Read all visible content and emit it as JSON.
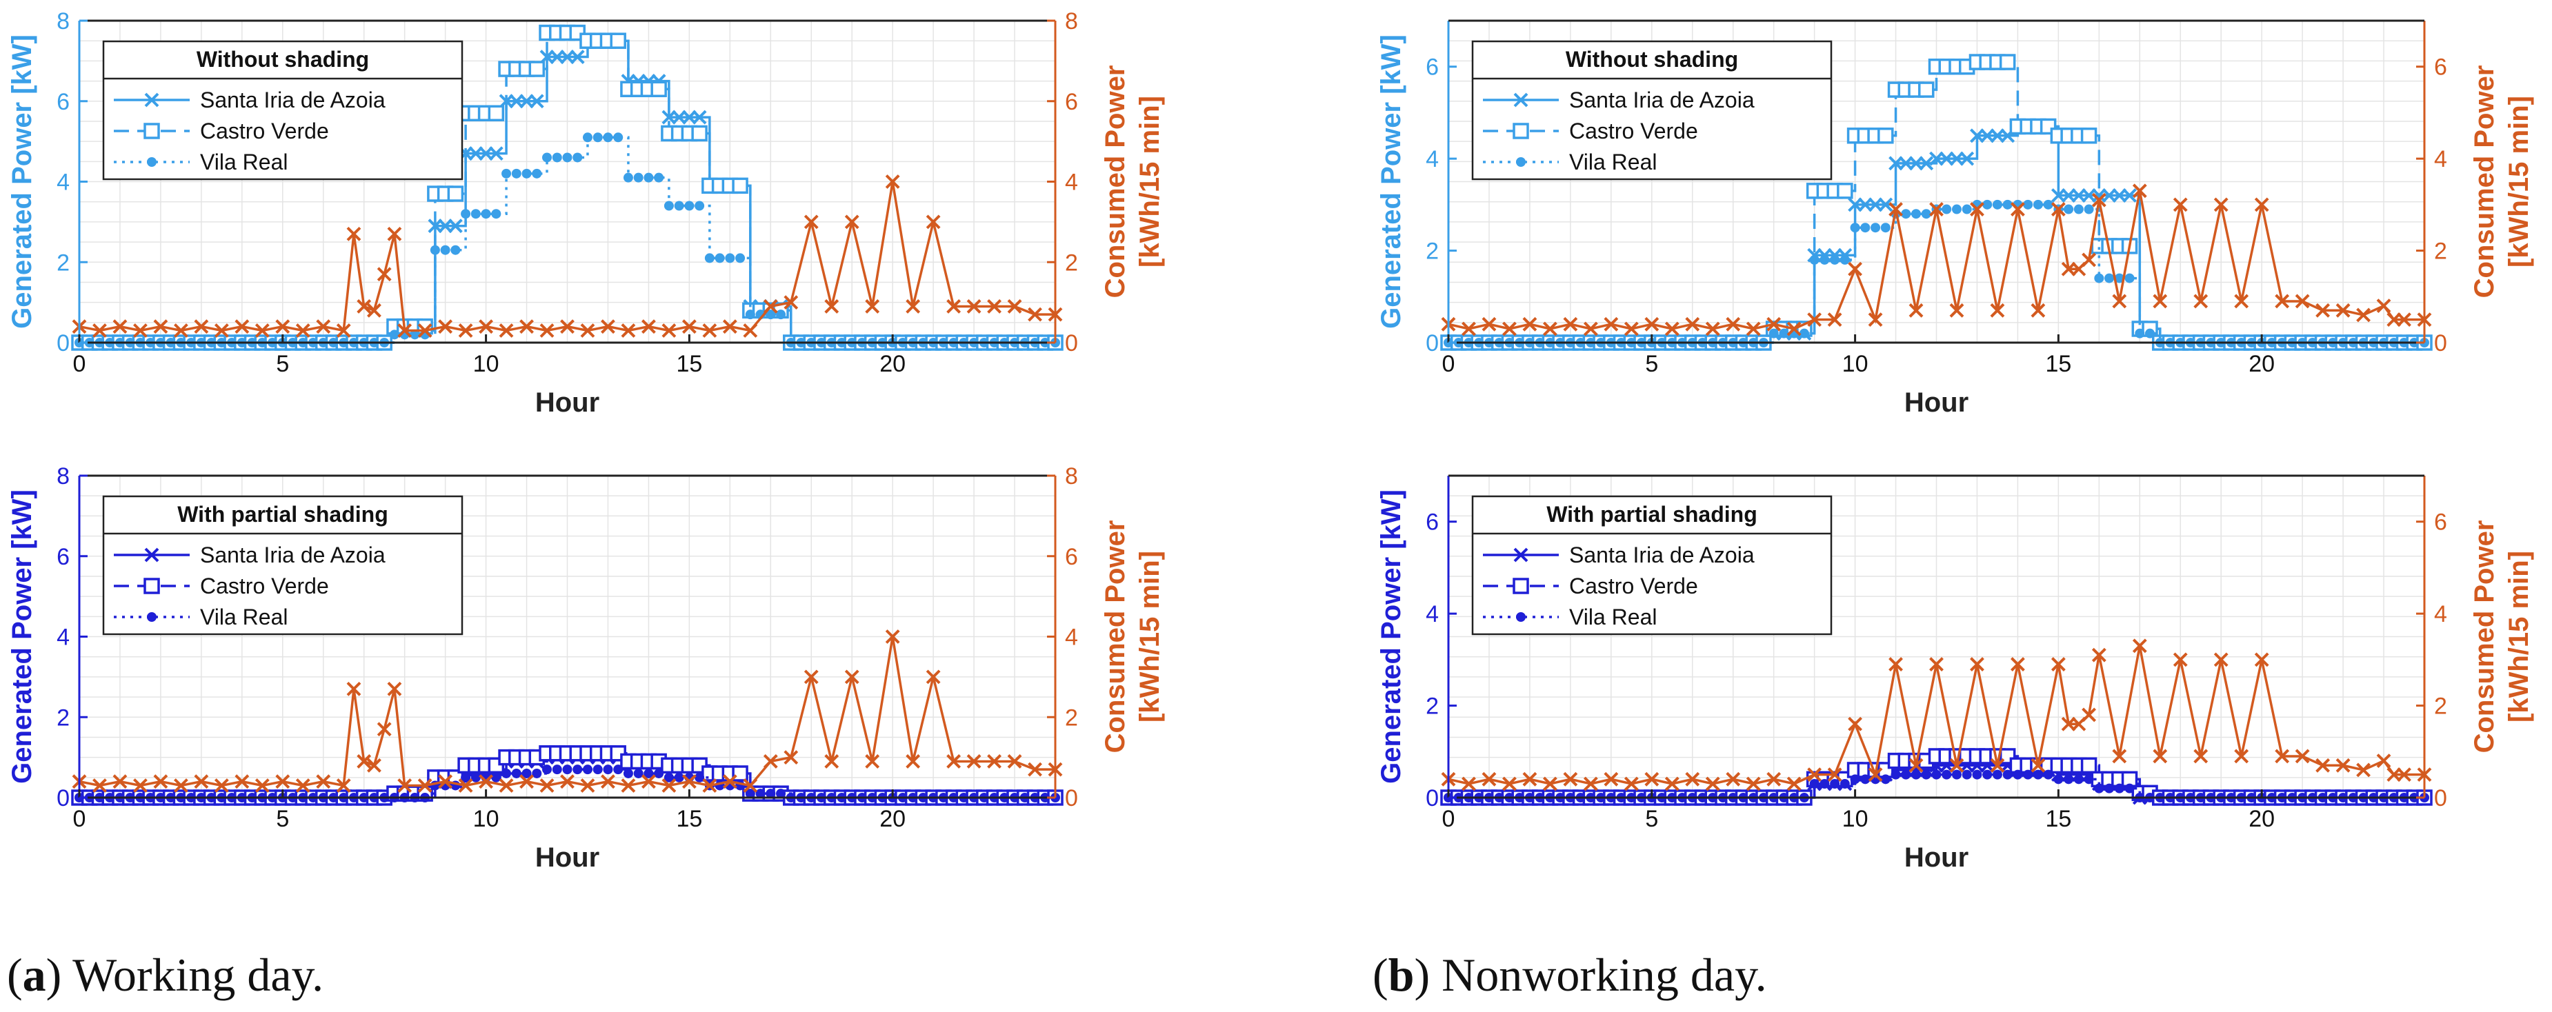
{
  "colors": {
    "unshaded": "#3a9fe8",
    "shaded": "#1f1fd6",
    "consumed": "#d35a1f",
    "grid": "#e4e4e4",
    "axis": "#222222"
  },
  "captions": [
    {
      "letter": "a",
      "text": " Working day."
    },
    {
      "letter": "b",
      "text": " Nonworking day."
    }
  ],
  "chart_data": [
    {
      "id": "working-unshaded",
      "type": "line",
      "title": "Without shading",
      "xlabel": "Hour",
      "ylabel_left": "Generated Power [kW]",
      "ylabel_right_1": "Consumed Power",
      "ylabel_right_2": "[kWh/15 min]",
      "xlim": [
        0,
        24
      ],
      "ylim_left": [
        0,
        8
      ],
      "ylim_right": [
        0,
        8
      ],
      "xticks": [
        0,
        5,
        10,
        15,
        20
      ],
      "yticks_left": [
        0,
        2,
        4,
        6,
        8
      ],
      "yticks_right": [
        0,
        2,
        4,
        6,
        8
      ],
      "color_key": "unshaded",
      "generation_hours": [
        7.75,
        8.75,
        9.0,
        9.5,
        10.0,
        10.5,
        11.0,
        11.5,
        12.0,
        12.5,
        13.0,
        13.5,
        14.0,
        14.5,
        15.0,
        15.5,
        16.0,
        16.5,
        17.0,
        17.5
      ],
      "series": [
        {
          "name": "Santa Iria de Azoia",
          "marker": "x",
          "dash": "solid",
          "values": [
            0.3,
            2.9,
            2.9,
            4.7,
            4.7,
            6.0,
            6.0,
            7.1,
            7.1,
            7.5,
            7.5,
            6.5,
            6.5,
            5.6,
            5.6,
            3.9,
            3.9,
            0.9,
            0.9,
            0.0
          ]
        },
        {
          "name": "Castro Verde",
          "marker": "square",
          "dash": "dash",
          "values": [
            0.4,
            3.7,
            3.7,
            5.7,
            5.7,
            6.8,
            6.8,
            7.7,
            7.7,
            7.5,
            7.5,
            6.3,
            6.3,
            5.2,
            5.2,
            3.9,
            3.9,
            0.8,
            0.8,
            0.0
          ]
        },
        {
          "name": "Vila Real",
          "marker": "dot",
          "dash": "dot",
          "values": [
            0.2,
            2.3,
            2.3,
            3.2,
            3.2,
            4.2,
            4.2,
            4.6,
            4.6,
            5.1,
            5.1,
            4.1,
            4.1,
            3.4,
            3.4,
            2.1,
            2.1,
            0.7,
            0.7,
            0.0
          ]
        }
      ],
      "consumption": {
        "name": "Consumed Power",
        "x": [
          0,
          0.5,
          1,
          1.5,
          2,
          2.5,
          3,
          3.5,
          4,
          4.5,
          5,
          5.5,
          6,
          6.5,
          6.75,
          7,
          7.25,
          7.5,
          7.75,
          8,
          8.5,
          9,
          9.5,
          10,
          10.5,
          11,
          11.5,
          12,
          12.5,
          13,
          13.5,
          14,
          14.5,
          15,
          15.5,
          16,
          16.5,
          17,
          17.5,
          18,
          18.5,
          19,
          19.5,
          20,
          20.5,
          21,
          21.5,
          22,
          22.5,
          23,
          23.5,
          24
        ],
        "values": [
          0.4,
          0.3,
          0.4,
          0.3,
          0.4,
          0.3,
          0.4,
          0.3,
          0.4,
          0.3,
          0.4,
          0.3,
          0.4,
          0.3,
          2.7,
          0.9,
          0.8,
          1.7,
          2.7,
          0.3,
          0.3,
          0.4,
          0.3,
          0.4,
          0.3,
          0.4,
          0.3,
          0.4,
          0.3,
          0.4,
          0.3,
          0.4,
          0.3,
          0.4,
          0.3,
          0.4,
          0.3,
          0.9,
          1.0,
          3.0,
          0.9,
          3.0,
          0.9,
          4.0,
          0.9,
          3.0,
          0.9,
          0.9,
          0.9,
          0.9,
          0.7,
          0.7
        ]
      }
    },
    {
      "id": "working-shaded",
      "type": "line",
      "title": "With partial shading",
      "xlabel": "Hour",
      "ylabel_left": "Generated Power [kW]",
      "ylabel_right_1": "Consumed Power",
      "ylabel_right_2": "[kWh/15 min]",
      "xlim": [
        0,
        24
      ],
      "ylim_left": [
        0,
        8
      ],
      "ylim_right": [
        0,
        8
      ],
      "xticks": [
        0,
        5,
        10,
        15,
        20
      ],
      "yticks_left": [
        0,
        2,
        4,
        6,
        8
      ],
      "yticks_right": [
        0,
        2,
        4,
        6,
        8
      ],
      "color_key": "shaded",
      "generation_hours": [
        7.75,
        8.75,
        9.0,
        9.5,
        10.0,
        10.5,
        11.0,
        11.5,
        12.0,
        12.5,
        13.0,
        13.5,
        14.0,
        14.5,
        15.0,
        15.5,
        16.0,
        16.5,
        17.0,
        17.5
      ],
      "series": [
        {
          "name": "Santa Iria de Azoia",
          "marker": "x",
          "dash": "solid",
          "values": [
            0.1,
            0.4,
            0.4,
            0.7,
            0.7,
            0.9,
            0.9,
            1.0,
            1.0,
            1.0,
            1.0,
            0.9,
            0.9,
            0.8,
            0.8,
            0.6,
            0.6,
            0.1,
            0.1,
            0.0
          ]
        },
        {
          "name": "Castro Verde",
          "marker": "square",
          "dash": "dash",
          "values": [
            0.1,
            0.5,
            0.5,
            0.8,
            0.8,
            1.0,
            1.0,
            1.1,
            1.1,
            1.1,
            1.1,
            0.9,
            0.9,
            0.8,
            0.8,
            0.6,
            0.6,
            0.1,
            0.1,
            0.0
          ]
        },
        {
          "name": "Vila Real",
          "marker": "dot",
          "dash": "dot",
          "values": [
            0.0,
            0.3,
            0.3,
            0.5,
            0.5,
            0.6,
            0.6,
            0.7,
            0.7,
            0.7,
            0.7,
            0.6,
            0.6,
            0.5,
            0.5,
            0.3,
            0.3,
            0.1,
            0.1,
            0.0
          ]
        }
      ],
      "consumption": {
        "name": "Consumed Power",
        "x": [
          0,
          0.5,
          1,
          1.5,
          2,
          2.5,
          3,
          3.5,
          4,
          4.5,
          5,
          5.5,
          6,
          6.5,
          6.75,
          7,
          7.25,
          7.5,
          7.75,
          8,
          8.5,
          9,
          9.5,
          10,
          10.5,
          11,
          11.5,
          12,
          12.5,
          13,
          13.5,
          14,
          14.5,
          15,
          15.5,
          16,
          16.5,
          17,
          17.5,
          18,
          18.5,
          19,
          19.5,
          20,
          20.5,
          21,
          21.5,
          22,
          22.5,
          23,
          23.5,
          24
        ],
        "values": [
          0.4,
          0.3,
          0.4,
          0.3,
          0.4,
          0.3,
          0.4,
          0.3,
          0.4,
          0.3,
          0.4,
          0.3,
          0.4,
          0.3,
          2.7,
          0.9,
          0.8,
          1.7,
          2.7,
          0.3,
          0.3,
          0.4,
          0.3,
          0.4,
          0.3,
          0.4,
          0.3,
          0.4,
          0.3,
          0.4,
          0.3,
          0.4,
          0.3,
          0.4,
          0.3,
          0.4,
          0.3,
          0.9,
          1.0,
          3.0,
          0.9,
          3.0,
          0.9,
          4.0,
          0.9,
          3.0,
          0.9,
          0.9,
          0.9,
          0.9,
          0.7,
          0.7
        ]
      }
    },
    {
      "id": "nonworking-unshaded",
      "type": "line",
      "title": "Without shading",
      "xlabel": "Hour",
      "ylabel_left": "Generated Power [kW]",
      "ylabel_right_1": "Consumed Power",
      "ylabel_right_2": "[kWh/15 min]",
      "xlim": [
        0,
        24
      ],
      "ylim_left": [
        0,
        7
      ],
      "ylim_right": [
        0,
        7
      ],
      "xticks": [
        0,
        5,
        10,
        15,
        20
      ],
      "yticks_left": [
        0,
        2,
        4,
        6
      ],
      "yticks_right": [
        0,
        2,
        4,
        6
      ],
      "color_key": "unshaded",
      "generation_hours": [
        8.0,
        9.0,
        9.5,
        10.0,
        10.5,
        11.0,
        11.5,
        12.0,
        12.5,
        13.0,
        13.5,
        14.0,
        14.5,
        15.0,
        15.5,
        16.0,
        16.5,
        17.0,
        17.5
      ],
      "series": [
        {
          "name": "Santa Iria de Azoia",
          "marker": "x",
          "dash": "solid",
          "values": [
            0.2,
            1.9,
            1.9,
            3.0,
            3.0,
            3.9,
            3.9,
            4.0,
            4.0,
            4.5,
            4.5,
            4.7,
            4.7,
            3.2,
            3.2,
            3.2,
            3.2,
            0.3,
            0.0
          ]
        },
        {
          "name": "Castro Verde",
          "marker": "square",
          "dash": "dash",
          "values": [
            0.3,
            3.3,
            3.3,
            4.5,
            4.5,
            5.5,
            5.5,
            6.0,
            6.0,
            6.1,
            6.1,
            4.7,
            4.7,
            4.5,
            4.5,
            2.1,
            2.1,
            0.3,
            0.0
          ]
        },
        {
          "name": "Vila Real",
          "marker": "dot",
          "dash": "dot",
          "values": [
            0.2,
            1.8,
            1.8,
            2.5,
            2.5,
            2.8,
            2.8,
            2.9,
            2.9,
            3.0,
            3.0,
            3.0,
            3.0,
            2.9,
            2.9,
            1.4,
            1.4,
            0.2,
            0.0
          ]
        }
      ],
      "consumption": {
        "name": "Consumed Power",
        "x": [
          0,
          0.5,
          1,
          1.5,
          2,
          2.5,
          3,
          3.5,
          4,
          4.5,
          5,
          5.5,
          6,
          6.5,
          7,
          7.5,
          8,
          8.5,
          9,
          9.5,
          10,
          10.5,
          11,
          11.5,
          12,
          12.5,
          13,
          13.5,
          14,
          14.5,
          15,
          15.25,
          15.5,
          15.75,
          16,
          16.5,
          17,
          17.5,
          18,
          18.5,
          19,
          19.5,
          20,
          20.5,
          21,
          21.5,
          22,
          22.5,
          23,
          23.25,
          23.5,
          24
        ],
        "values": [
          0.4,
          0.3,
          0.4,
          0.3,
          0.4,
          0.3,
          0.4,
          0.3,
          0.4,
          0.3,
          0.4,
          0.3,
          0.4,
          0.3,
          0.4,
          0.3,
          0.4,
          0.3,
          0.5,
          0.5,
          1.6,
          0.5,
          2.9,
          0.7,
          2.9,
          0.7,
          2.9,
          0.7,
          2.9,
          0.7,
          2.9,
          1.6,
          1.6,
          1.8,
          3.1,
          0.9,
          3.3,
          0.9,
          3.0,
          0.9,
          3.0,
          0.9,
          3.0,
          0.9,
          0.9,
          0.7,
          0.7,
          0.6,
          0.8,
          0.5,
          0.5,
          0.5
        ]
      }
    },
    {
      "id": "nonworking-shaded",
      "type": "line",
      "title": "With partial shading",
      "xlabel": "Hour",
      "ylabel_left": "Generated Power [kW]",
      "ylabel_right_1": "Consumed Power",
      "ylabel_right_2": "[kWh/15 min]",
      "xlim": [
        0,
        24
      ],
      "ylim_left": [
        0,
        7
      ],
      "ylim_right": [
        0,
        7
      ],
      "xticks": [
        0,
        5,
        10,
        15,
        20
      ],
      "yticks_left": [
        0,
        2,
        4,
        6
      ],
      "yticks_right": [
        0,
        2,
        4,
        6
      ],
      "color_key": "shaded",
      "generation_hours": [
        8.0,
        9.0,
        9.5,
        10.0,
        10.5,
        11.0,
        11.5,
        12.0,
        12.5,
        13.0,
        13.5,
        14.0,
        14.5,
        15.0,
        15.5,
        16.0,
        16.5,
        17.0,
        17.5
      ],
      "series": [
        {
          "name": "Santa Iria de Azoia",
          "marker": "x",
          "dash": "solid",
          "values": [
            0.0,
            0.3,
            0.3,
            0.5,
            0.5,
            0.6,
            0.6,
            0.7,
            0.7,
            0.7,
            0.7,
            0.6,
            0.6,
            0.5,
            0.5,
            0.3,
            0.3,
            0.0,
            0.0
          ]
        },
        {
          "name": "Castro Verde",
          "marker": "square",
          "dash": "dash",
          "values": [
            0.0,
            0.4,
            0.4,
            0.6,
            0.6,
            0.8,
            0.8,
            0.9,
            0.9,
            0.9,
            0.9,
            0.7,
            0.7,
            0.7,
            0.7,
            0.4,
            0.4,
            0.1,
            0.0
          ]
        },
        {
          "name": "Vila Real",
          "marker": "dot",
          "dash": "dot",
          "values": [
            0.0,
            0.3,
            0.3,
            0.4,
            0.4,
            0.5,
            0.5,
            0.5,
            0.5,
            0.5,
            0.5,
            0.5,
            0.5,
            0.4,
            0.4,
            0.2,
            0.2,
            0.0,
            0.0
          ]
        }
      ],
      "consumption": {
        "name": "Consumed Power",
        "x": [
          0,
          0.5,
          1,
          1.5,
          2,
          2.5,
          3,
          3.5,
          4,
          4.5,
          5,
          5.5,
          6,
          6.5,
          7,
          7.5,
          8,
          8.5,
          9,
          9.5,
          10,
          10.5,
          11,
          11.5,
          12,
          12.5,
          13,
          13.5,
          14,
          14.5,
          15,
          15.25,
          15.5,
          15.75,
          16,
          16.5,
          17,
          17.5,
          18,
          18.5,
          19,
          19.5,
          20,
          20.5,
          21,
          21.5,
          22,
          22.5,
          23,
          23.25,
          23.5,
          24
        ],
        "values": [
          0.4,
          0.3,
          0.4,
          0.3,
          0.4,
          0.3,
          0.4,
          0.3,
          0.4,
          0.3,
          0.4,
          0.3,
          0.4,
          0.3,
          0.4,
          0.3,
          0.4,
          0.3,
          0.5,
          0.5,
          1.6,
          0.5,
          2.9,
          0.7,
          2.9,
          0.7,
          2.9,
          0.7,
          2.9,
          0.7,
          2.9,
          1.6,
          1.6,
          1.8,
          3.1,
          0.9,
          3.3,
          0.9,
          3.0,
          0.9,
          3.0,
          0.9,
          3.0,
          0.9,
          0.9,
          0.7,
          0.7,
          0.6,
          0.8,
          0.5,
          0.5,
          0.5
        ]
      }
    }
  ]
}
